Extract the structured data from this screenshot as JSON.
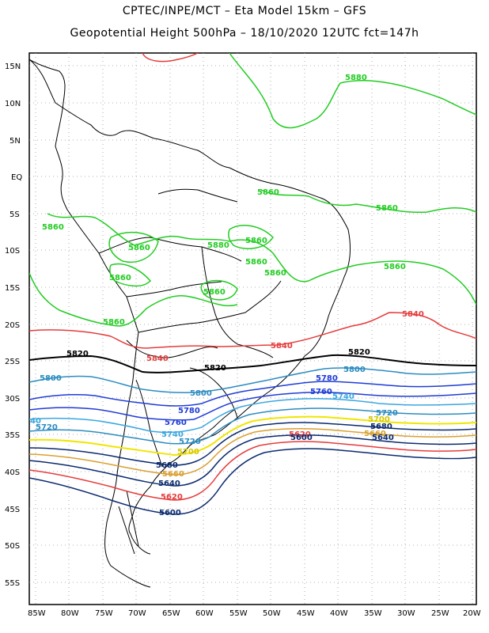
{
  "title_line1": "CPTEC/INPE/MCT –  Eta Model 15km – GFS",
  "title_line2": "Geopotential Height 500hPa – 18/10/2020 12UTC fct=147h",
  "lat_ticks": [
    "15N",
    "10N",
    "5N",
    "EQ",
    "5S",
    "10S",
    "15S",
    "20S",
    "25S",
    "30S",
    "35S",
    "40S",
    "45S",
    "50S",
    "55S"
  ],
  "lon_ticks": [
    "85W",
    "80W",
    "75W",
    "70W",
    "65W",
    "60W",
    "55W",
    "50W",
    "45W",
    "40W",
    "35W",
    "30W",
    "25W",
    "20W"
  ],
  "contour_labels": [
    {
      "text": "5880",
      "color": "#22cc22"
    },
    {
      "text": "5860",
      "color": "#22cc22"
    },
    {
      "text": "5860",
      "color": "#22cc22"
    },
    {
      "text": "5860",
      "color": "#22cc22"
    },
    {
      "text": "5860",
      "color": "#22cc22"
    },
    {
      "text": "5860",
      "color": "#22cc22"
    },
    {
      "text": "5880",
      "color": "#22cc22"
    },
    {
      "text": "5860",
      "color": "#22cc22"
    },
    {
      "text": "5860",
      "color": "#22cc22"
    },
    {
      "text": "5860",
      "color": "#22cc22"
    },
    {
      "text": "5860",
      "color": "#22cc22"
    },
    {
      "text": "5860",
      "color": "#22cc22"
    },
    {
      "text": "5860",
      "color": "#22cc22"
    },
    {
      "text": "5840",
      "color": "#e63c3c"
    },
    {
      "text": "5840",
      "color": "#e63c3c"
    },
    {
      "text": "5840",
      "color": "#e63c3c"
    },
    {
      "text": "5820",
      "color": "#000000"
    },
    {
      "text": "5820",
      "color": "#000000"
    },
    {
      "text": "5820",
      "color": "#000000"
    },
    {
      "text": "5800",
      "color": "#2c8cc0"
    },
    {
      "text": "5800",
      "color": "#2c8cc0"
    },
    {
      "text": "5800",
      "color": "#2c8cc0"
    },
    {
      "text": "5780",
      "color": "#1f3cd6"
    },
    {
      "text": "5780",
      "color": "#1f3cd6"
    },
    {
      "text": "5760",
      "color": "#1f3cd6"
    },
    {
      "text": "5760",
      "color": "#1f3cd6"
    },
    {
      "text": "5740",
      "color": "#3aa7e0"
    },
    {
      "text": "5740",
      "color": "#3aa7e0"
    },
    {
      "text": "5720",
      "color": "#2c8cc0"
    },
    {
      "text": "5720",
      "color": "#2c8cc0"
    },
    {
      "text": "5720",
      "color": "#2c8cc0"
    },
    {
      "text": "5700",
      "color": "#d4c800"
    },
    {
      "text": "5700",
      "color": "#d4c800"
    },
    {
      "text": "5680",
      "color": "#0a2a6e"
    },
    {
      "text": "5680",
      "color": "#0a2a6e"
    },
    {
      "text": "5660",
      "color": "#d9a030"
    },
    {
      "text": "5660",
      "color": "#d9a030"
    },
    {
      "text": "5640",
      "color": "#0a2a6e"
    },
    {
      "text": "5640",
      "color": "#0a2a6e"
    },
    {
      "text": "5620",
      "color": "#e63c3c"
    },
    {
      "text": "5620",
      "color": "#e63c3c"
    },
    {
      "text": "5600",
      "color": "#0a2a6e"
    },
    {
      "text": "5600",
      "color": "#0a2a6e"
    },
    {
      "text": "40",
      "color": "#3aa7e0"
    }
  ],
  "colors": {
    "c5880": "#22cc22",
    "c5860": "#22cc22",
    "c5840": "#e63c3c",
    "c5820": "#000000",
    "c5800": "#2c8cc0",
    "c5780": "#1f3cd6",
    "c5760": "#1f3cd6",
    "c5740": "#3aa7e0",
    "c5720": "#2c8cc0",
    "c5700": "#f0e600",
    "c5680": "#0a2a6e",
    "c5660": "#d9a030",
    "c5640": "#0a2a6e",
    "c5620": "#e63c3c",
    "c5600": "#0a2a6e"
  }
}
